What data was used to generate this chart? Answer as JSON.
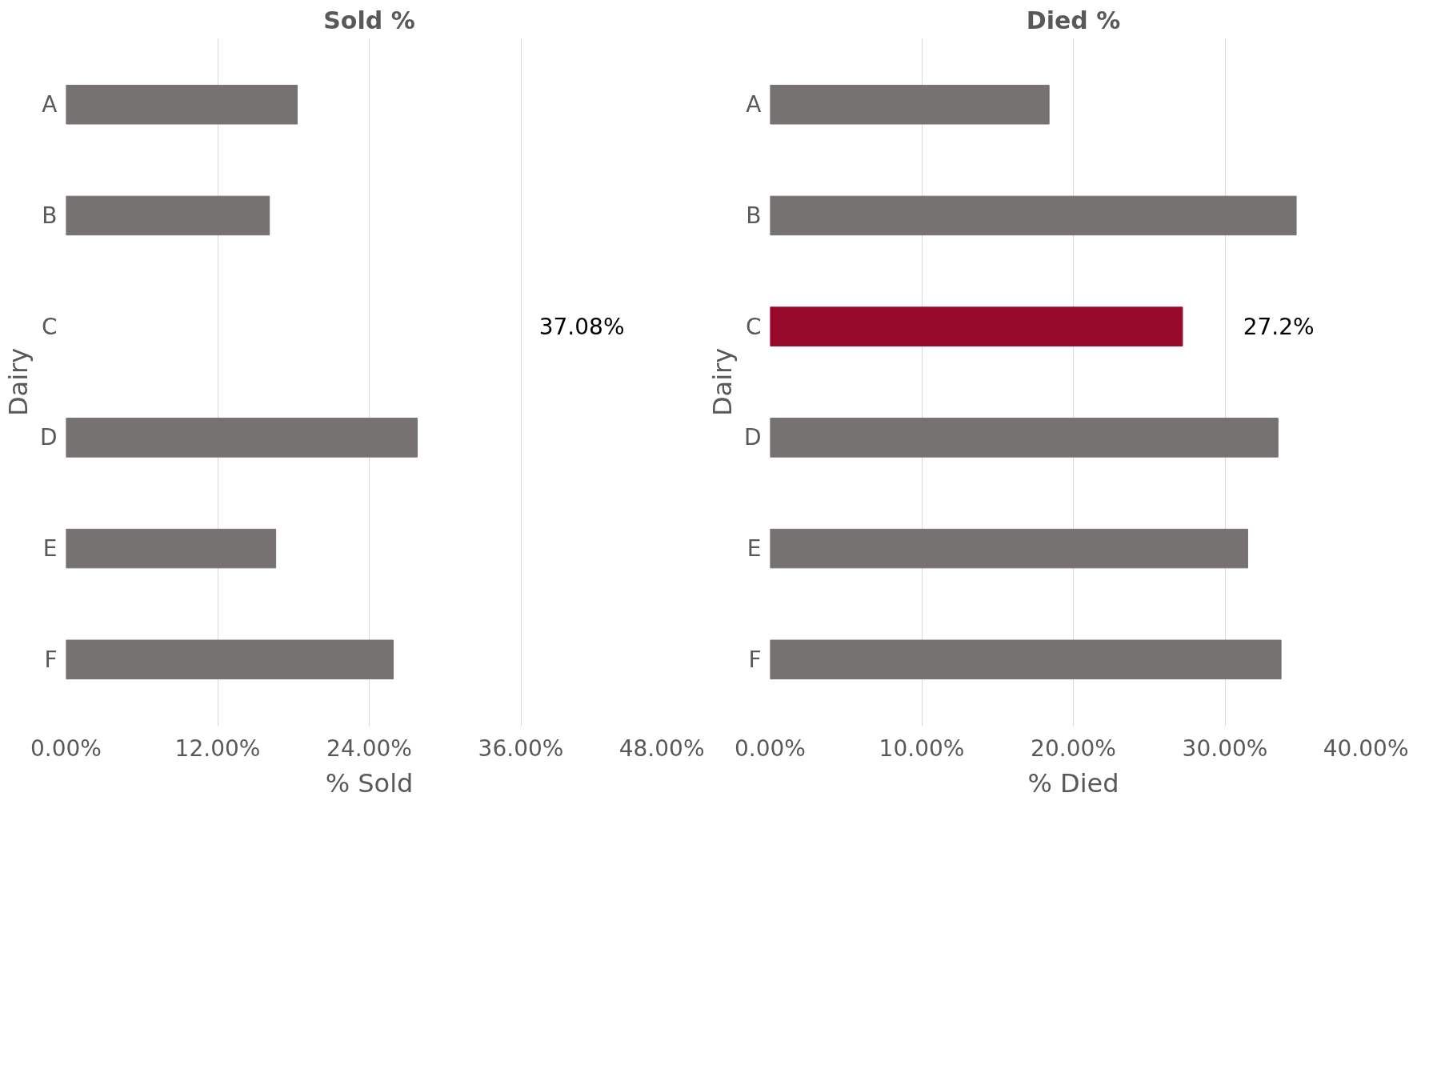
{
  "chart_data": [
    {
      "type": "bar",
      "orientation": "horizontal",
      "title": "Sold %",
      "xlabel": "% Sold",
      "ylabel": "Dairy",
      "categories": [
        "A",
        "B",
        "C",
        "D",
        "E",
        "F"
      ],
      "values": [
        18.3,
        16.1,
        null,
        27.8,
        16.6,
        25.9
      ],
      "colors": [
        "#767271",
        "#767271",
        "#970a2c",
        "#767271",
        "#767271",
        "#767271"
      ],
      "xlim": [
        0,
        48
      ],
      "xticks": [
        {
          "value": 0,
          "label": "0.00%"
        },
        {
          "value": 12,
          "label": "12.00%"
        },
        {
          "value": 24,
          "label": "24.00%"
        },
        {
          "value": 36,
          "label": "36.00%"
        },
        {
          "value": 48,
          "label": "48.00%"
        }
      ],
      "grid": "x",
      "annotations": [
        "37.08%"
      ]
    },
    {
      "type": "bar",
      "orientation": "horizontal",
      "title": "Died %",
      "xlabel": "% Died",
      "ylabel": "Dairy",
      "categories": [
        "A",
        "B",
        "C",
        "D",
        "E",
        "F"
      ],
      "values": [
        18.4,
        34.7,
        27.2,
        33.5,
        31.5,
        33.7
      ],
      "colors": [
        "#767271",
        "#767271",
        "#970a2c",
        "#767271",
        "#767271",
        "#767271"
      ],
      "xlim": [
        0,
        40
      ],
      "xticks": [
        {
          "value": 0,
          "label": "0.00%"
        },
        {
          "value": 10,
          "label": "10.00%"
        },
        {
          "value": 20,
          "label": "20.00%"
        },
        {
          "value": 30,
          "label": "30.00%"
        },
        {
          "value": 40,
          "label": "40.00%"
        }
      ],
      "grid": "x",
      "annotations": [
        "27.2%"
      ]
    }
  ]
}
